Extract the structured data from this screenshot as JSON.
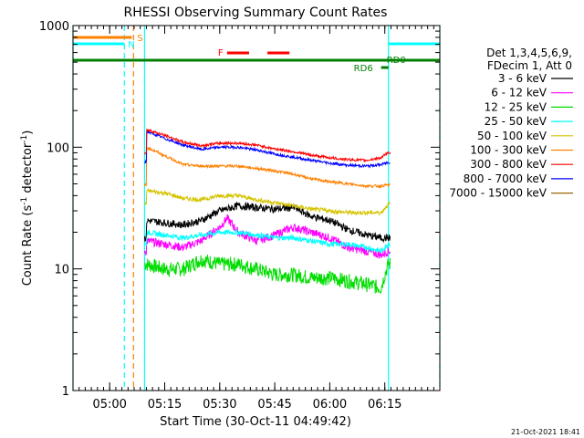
{
  "chart_data": {
    "type": "line",
    "title": "RHESSI Observing Summary Count Rates",
    "xlabel": "Start Time (30-Oct-11 04:49:42)",
    "ylabel_main": "Count Rate (s",
    "ylabel_sup1": "-1",
    "ylabel_mid": " detector",
    "ylabel_sup2": "-1",
    "ylabel_end": ")",
    "yscale": "log",
    "ylim": [
      1,
      1000
    ],
    "xlim_min": [
      0,
      100
    ],
    "y_ticks": [
      {
        "value": 1,
        "label": "1"
      },
      {
        "value": 10,
        "label": "10"
      },
      {
        "value": 100,
        "label": "100"
      },
      {
        "value": 1000,
        "label": "1000"
      }
    ],
    "x_ticks": [
      {
        "value": 10,
        "label": "05:00"
      },
      {
        "value": 25,
        "label": "05:15"
      },
      {
        "value": 40,
        "label": "05:30"
      },
      {
        "value": 55,
        "label": "05:45"
      },
      {
        "value": 70,
        "label": "06:00"
      },
      {
        "value": 85,
        "label": "06:15"
      }
    ],
    "legend_header": [
      "Det 1,3,4,5,6,9,",
      "FDecim 1, Att 0"
    ],
    "series": [
      {
        "name": "3 - 6 keV",
        "color": "#000000",
        "base": 25,
        "noise": 0.05
      },
      {
        "name": "6 - 12 keV",
        "color": "#ff00ff",
        "base": 17,
        "noise": 0.06
      },
      {
        "name": "12 - 25 keV",
        "color": "#00dd00",
        "base": 11,
        "noise": 0.12
      },
      {
        "name": "25 - 50 keV",
        "color": "#00ffff",
        "base": 16,
        "noise": 0.04
      },
      {
        "name": "50 - 100 keV",
        "color": "#d4c400",
        "base": 44,
        "noise": 0.03
      },
      {
        "name": "100 - 300 keV",
        "color": "#ff8000",
        "base": 80,
        "noise": 0.02
      },
      {
        "name": "300 - 800 keV",
        "color": "#ff0000",
        "base": 120,
        "noise": 0.02
      },
      {
        "name": "800 - 7000 keV",
        "color": "#0000ff",
        "base": 120,
        "noise": 0.02
      },
      {
        "name": "7000 - 15000 keV",
        "color": "#996600",
        "base": 0,
        "noise": 0
      }
    ],
    "profiles": {
      "black": [
        [
          20,
          25
        ],
        [
          25,
          24
        ],
        [
          30,
          23
        ],
        [
          35,
          25
        ],
        [
          40,
          30
        ],
        [
          45,
          33
        ],
        [
          50,
          32
        ],
        [
          55,
          31
        ],
        [
          60,
          32
        ],
        [
          65,
          27
        ],
        [
          70,
          25
        ],
        [
          75,
          21
        ],
        [
          80,
          19
        ],
        [
          84,
          18
        ],
        [
          86,
          18
        ]
      ],
      "magenta": [
        [
          20,
          17
        ],
        [
          25,
          16
        ],
        [
          30,
          15
        ],
        [
          35,
          17
        ],
        [
          40,
          22
        ],
        [
          42,
          26
        ],
        [
          45,
          20
        ],
        [
          50,
          17
        ],
        [
          55,
          19
        ],
        [
          60,
          22
        ],
        [
          65,
          20
        ],
        [
          70,
          18
        ],
        [
          75,
          15
        ],
        [
          80,
          14
        ],
        [
          84,
          13
        ],
        [
          86,
          14
        ]
      ],
      "green": [
        [
          20,
          11
        ],
        [
          25,
          10
        ],
        [
          30,
          10
        ],
        [
          35,
          12
        ],
        [
          40,
          11
        ],
        [
          45,
          11
        ],
        [
          50,
          10
        ],
        [
          55,
          9
        ],
        [
          60,
          9
        ],
        [
          65,
          8.5
        ],
        [
          70,
          8.5
        ],
        [
          75,
          8
        ],
        [
          80,
          7.5
        ],
        [
          84,
          7
        ],
        [
          86,
          11
        ]
      ],
      "cyan": [
        [
          20,
          20
        ],
        [
          25,
          19
        ],
        [
          30,
          18
        ],
        [
          35,
          19
        ],
        [
          40,
          20
        ],
        [
          45,
          20
        ],
        [
          50,
          19
        ],
        [
          55,
          18
        ],
        [
          60,
          18
        ],
        [
          65,
          17
        ],
        [
          70,
          16
        ],
        [
          75,
          16
        ],
        [
          80,
          15
        ],
        [
          84,
          14
        ],
        [
          86,
          16
        ]
      ],
      "yellow": [
        [
          20,
          44
        ],
        [
          25,
          42
        ],
        [
          30,
          38
        ],
        [
          35,
          37
        ],
        [
          40,
          40
        ],
        [
          45,
          40
        ],
        [
          50,
          37
        ],
        [
          55,
          35
        ],
        [
          60,
          33
        ],
        [
          65,
          31
        ],
        [
          70,
          30
        ],
        [
          75,
          29
        ],
        [
          80,
          29
        ],
        [
          84,
          29
        ],
        [
          86,
          34
        ]
      ],
      "orange": [
        [
          20,
          100
        ],
        [
          25,
          85
        ],
        [
          30,
          72
        ],
        [
          35,
          70
        ],
        [
          40,
          70
        ],
        [
          45,
          70
        ],
        [
          50,
          67
        ],
        [
          55,
          64
        ],
        [
          60,
          60
        ],
        [
          65,
          55
        ],
        [
          70,
          52
        ],
        [
          75,
          50
        ],
        [
          80,
          48
        ],
        [
          84,
          48
        ],
        [
          86,
          49
        ]
      ],
      "red": [
        [
          20,
          140
        ],
        [
          25,
          125
        ],
        [
          30,
          110
        ],
        [
          35,
          103
        ],
        [
          40,
          108
        ],
        [
          45,
          108
        ],
        [
          50,
          104
        ],
        [
          55,
          97
        ],
        [
          60,
          92
        ],
        [
          65,
          86
        ],
        [
          70,
          82
        ],
        [
          75,
          79
        ],
        [
          80,
          78
        ],
        [
          84,
          82
        ],
        [
          86,
          90
        ]
      ],
      "blue": [
        [
          20,
          135
        ],
        [
          25,
          118
        ],
        [
          30,
          104
        ],
        [
          35,
          96
        ],
        [
          40,
          100
        ],
        [
          45,
          100
        ],
        [
          50,
          95
        ],
        [
          55,
          88
        ],
        [
          60,
          83
        ],
        [
          65,
          78
        ],
        [
          70,
          74
        ],
        [
          75,
          71
        ],
        [
          80,
          70
        ],
        [
          84,
          72
        ],
        [
          86,
          75
        ]
      ]
    },
    "state_bars": {
      "S": {
        "label": "S",
        "color": "#ff8000",
        "x0": 0,
        "x1": 16
      },
      "N": {
        "label": "N",
        "color": "#00ffff",
        "x0": 0,
        "x1": 14
      },
      "F": {
        "label": "F",
        "color": "#ff0000",
        "segments": [
          [
            42,
            48
          ],
          [
            53,
            59
          ]
        ]
      },
      "SAA": {
        "color": "#008000",
        "x0": 0,
        "x1": 100
      },
      "RD0": {
        "label": "RD0",
        "color": "#00ffff",
        "x0": 86,
        "x1": 100
      },
      "RD6": {
        "label": "RD6",
        "color": "#008000",
        "x0": 84,
        "x1": 86
      }
    },
    "vlines": [
      {
        "x": 0,
        "color": "#00ffff",
        "dash": false
      },
      {
        "x": 14,
        "color": "#00ffff",
        "dash": true
      },
      {
        "x": 16.5,
        "color": "#ff8000",
        "dash": true
      },
      {
        "x": 19.5,
        "color": "#00ffff",
        "dash": false
      },
      {
        "x": 86,
        "color": "#00ffff",
        "dash": false
      },
      {
        "x": 100,
        "color": "#00ffff",
        "dash": true
      }
    ],
    "footer_date": "21-Oct-2021 18:41"
  }
}
